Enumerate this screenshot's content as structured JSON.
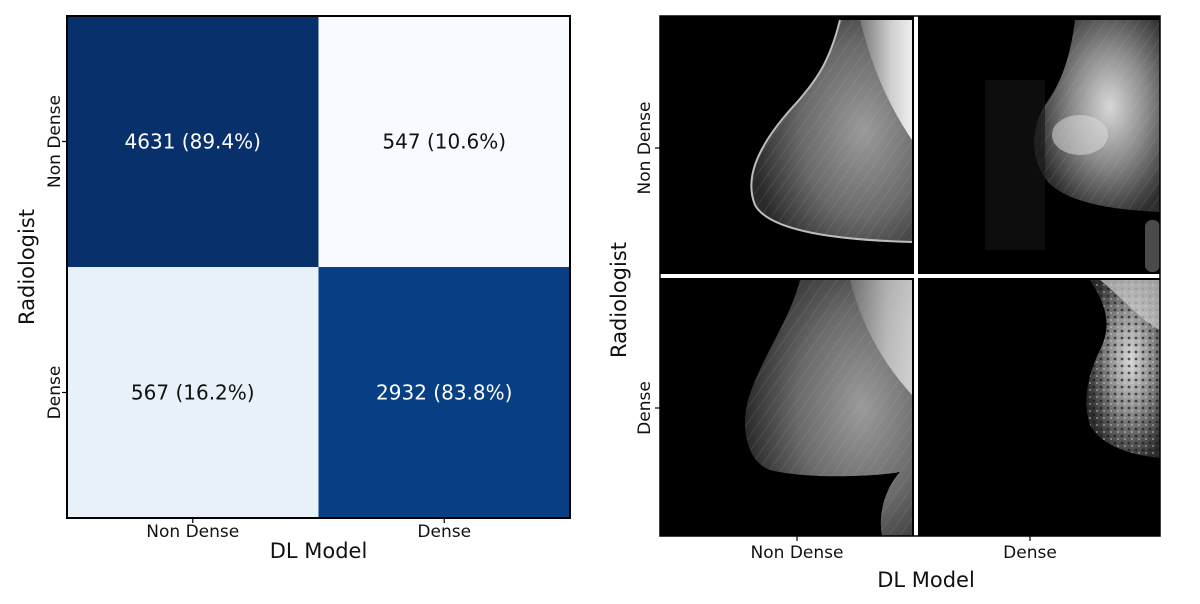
{
  "chart_data": [
    {
      "type": "heatmap",
      "xlabel": "DL Model",
      "ylabel": "Radiologist",
      "x_categories": [
        "Non Dense",
        "Dense"
      ],
      "y_categories": [
        "Non Dense",
        "Dense"
      ],
      "colormap": "Blues",
      "cells": [
        {
          "row": 0,
          "col": 0,
          "count": 4631,
          "percent": 89.4,
          "label": "4631 (89.4%)",
          "color": "#08306b",
          "text_color": "#ffffff"
        },
        {
          "row": 0,
          "col": 1,
          "count": 547,
          "percent": 10.6,
          "label": "547 (10.6%)",
          "color": "#f7fbff",
          "text_color": "#111111"
        },
        {
          "row": 1,
          "col": 0,
          "count": 567,
          "percent": 16.2,
          "label": "567 (16.2%)",
          "color": "#e8f1fa",
          "text_color": "#111111"
        },
        {
          "row": 1,
          "col": 1,
          "count": 2932,
          "percent": 83.8,
          "label": "2932 (83.8%)",
          "color": "#083f84",
          "text_color": "#ffffff"
        }
      ]
    },
    {
      "type": "image-grid",
      "xlabel": "DL Model",
      "ylabel": "Radiologist",
      "x_categories": [
        "Non Dense",
        "Dense"
      ],
      "y_categories": [
        "Non Dense",
        "Dense"
      ],
      "panels": [
        {
          "row": 0,
          "col": 0,
          "content": "mammogram-icon"
        },
        {
          "row": 0,
          "col": 1,
          "content": "mammogram-icon"
        },
        {
          "row": 1,
          "col": 0,
          "content": "mammogram-icon"
        },
        {
          "row": 1,
          "col": 1,
          "content": "mammogram-icon"
        }
      ]
    }
  ]
}
